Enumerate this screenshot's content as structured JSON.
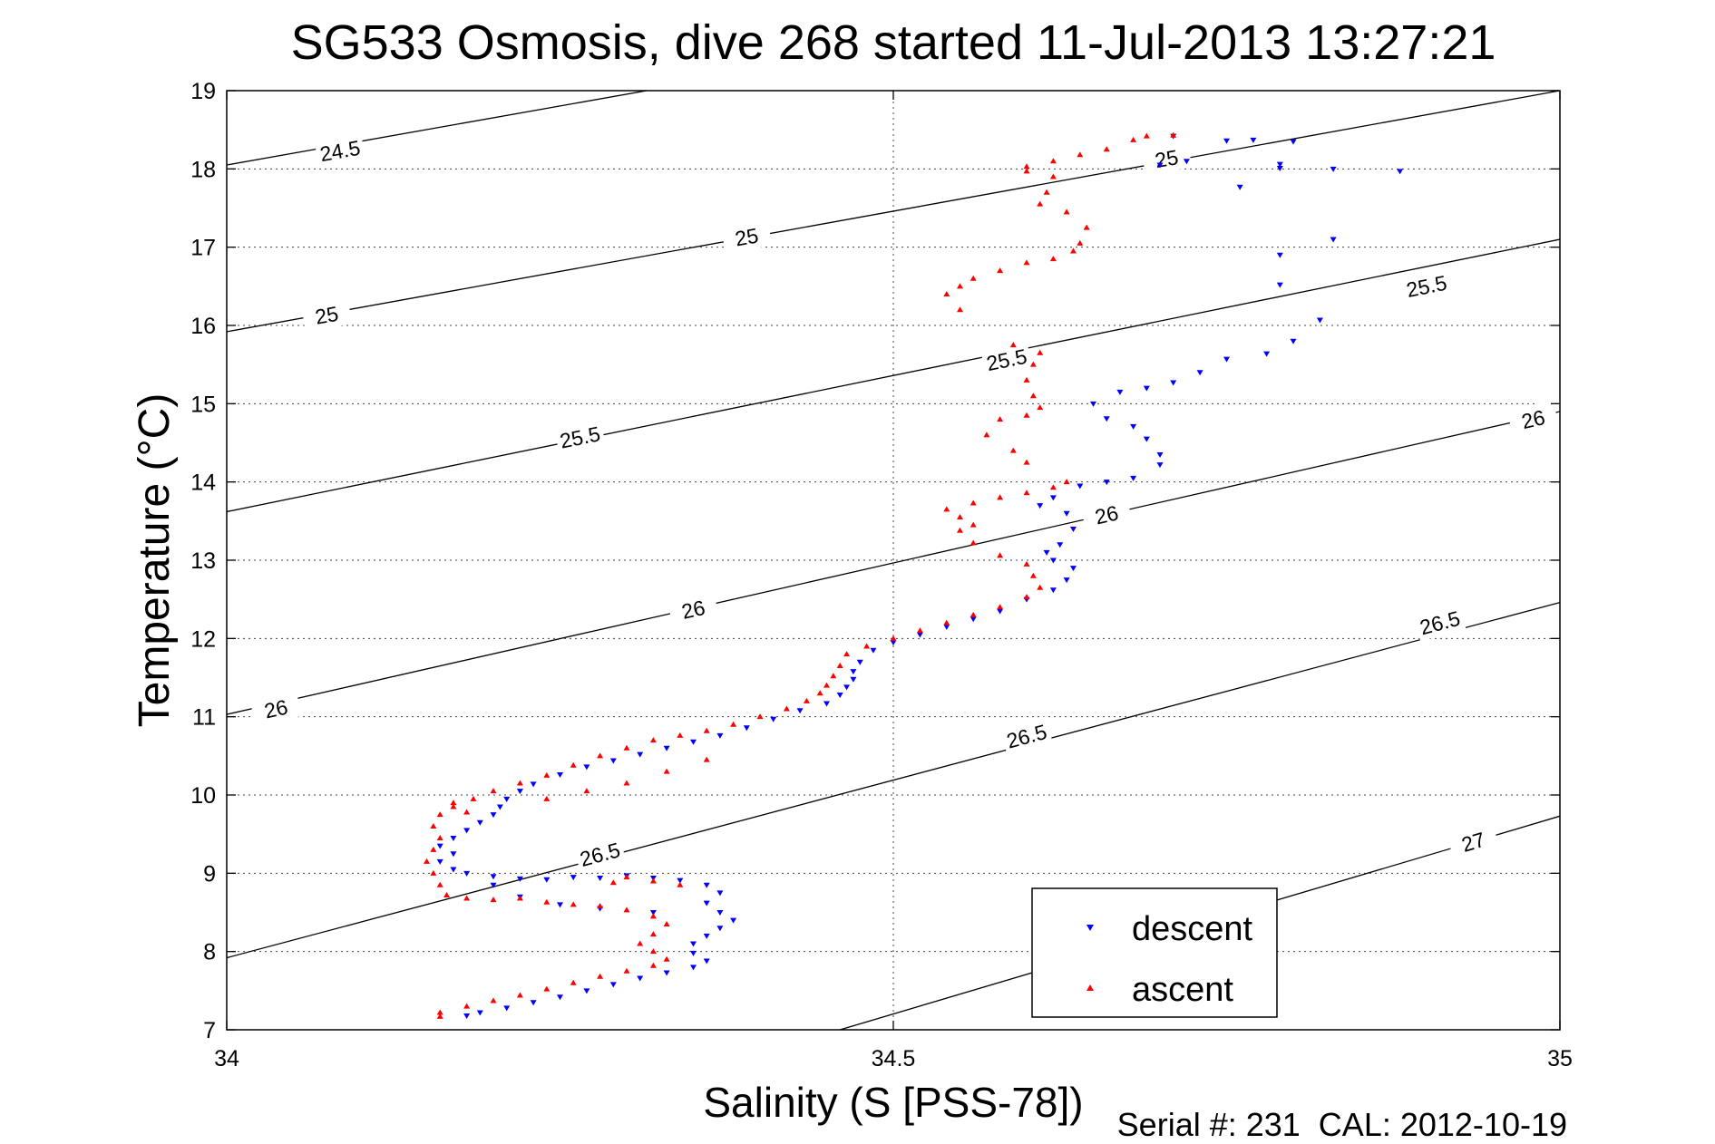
{
  "chart_data": {
    "type": "scatter",
    "title": "SG533 Osmosis, dive 268 started 11-Jul-2013 13:27:21",
    "xlabel": "Salinity (S [PSS-78])",
    "ylabel": "Temperature (°C)",
    "footer": "Serial #: 231  CAL: 2012-10-19",
    "xlim": [
      34,
      35
    ],
    "ylim": [
      7,
      19
    ],
    "x_ticks": [
      34,
      34.5,
      35
    ],
    "y_ticks": [
      7,
      8,
      9,
      10,
      11,
      12,
      13,
      14,
      15,
      16,
      17,
      18,
      19
    ],
    "grid": true,
    "legend": {
      "placement": "lower-right",
      "entries": [
        "descent",
        "ascent"
      ]
    },
    "colors": {
      "descent": "#0000ff",
      "ascent": "#ff0000",
      "contours": "#000000"
    },
    "contours": [
      {
        "label": "24.5",
        "points": [
          [
            34.0,
            18.05
          ],
          [
            34.315,
            19.0
          ]
        ],
        "label_at": [
          [
            34.085,
            18.23
          ]
        ]
      },
      {
        "label": "25",
        "points": [
          [
            34.0,
            15.92
          ],
          [
            35.0,
            19.0
          ]
        ],
        "label_at": [
          [
            34.075,
            16.13
          ],
          [
            34.39,
            17.13
          ],
          [
            34.705,
            18.13
          ]
        ]
      },
      {
        "label": "25.5",
        "points": [
          [
            34.0,
            13.62
          ],
          [
            35.0,
            17.1
          ]
        ],
        "label_at": [
          [
            34.265,
            14.57
          ],
          [
            34.585,
            15.56
          ],
          [
            34.9,
            16.5
          ]
        ]
      },
      {
        "label": "26",
        "points": [
          [
            34.0,
            11.03
          ],
          [
            35.0,
            14.9
          ]
        ],
        "label_at": [
          [
            34.037,
            11.1
          ],
          [
            34.35,
            12.37
          ],
          [
            34.66,
            13.58
          ],
          [
            34.98,
            14.8
          ]
        ]
      },
      {
        "label": "26.5",
        "points": [
          [
            34.0,
            7.92
          ],
          [
            35.0,
            12.46
          ]
        ],
        "label_at": [
          [
            34.28,
            9.24
          ],
          [
            34.6,
            10.75
          ],
          [
            34.91,
            12.2
          ]
        ]
      },
      {
        "label": "27",
        "points": [
          [
            34.46,
            7.0
          ],
          [
            35.0,
            9.73
          ]
        ],
        "label_at": [
          [
            34.935,
            9.4
          ]
        ]
      }
    ],
    "series": [
      {
        "name": "descent",
        "marker": "triangle-down",
        "points": [
          [
            34.88,
            17.97
          ],
          [
            34.83,
            18.0
          ],
          [
            34.79,
            18.06
          ],
          [
            34.8,
            18.35
          ],
          [
            34.77,
            18.37
          ],
          [
            34.75,
            18.36
          ],
          [
            34.72,
            18.1
          ],
          [
            34.7,
            18.05
          ],
          [
            34.71,
            18.42
          ],
          [
            34.79,
            18.01
          ],
          [
            34.76,
            17.77
          ],
          [
            34.83,
            17.1
          ],
          [
            34.79,
            16.9
          ],
          [
            34.79,
            16.52
          ],
          [
            34.82,
            16.07
          ],
          [
            34.8,
            15.8
          ],
          [
            34.78,
            15.64
          ],
          [
            34.75,
            15.57
          ],
          [
            34.73,
            15.4
          ],
          [
            34.71,
            15.27
          ],
          [
            34.69,
            15.2
          ],
          [
            34.67,
            15.15
          ],
          [
            34.65,
            15.0
          ],
          [
            34.66,
            14.81
          ],
          [
            34.68,
            14.71
          ],
          [
            34.69,
            14.55
          ],
          [
            34.7,
            14.35
          ],
          [
            34.7,
            14.22
          ],
          [
            34.68,
            14.05
          ],
          [
            34.66,
            14.0
          ],
          [
            34.64,
            13.95
          ],
          [
            34.62,
            13.8
          ],
          [
            34.61,
            13.7
          ],
          [
            34.63,
            13.6
          ],
          [
            34.635,
            13.4
          ],
          [
            34.625,
            13.2
          ],
          [
            34.615,
            13.1
          ],
          [
            34.62,
            13.0
          ],
          [
            34.635,
            12.9
          ],
          [
            34.63,
            12.75
          ],
          [
            34.62,
            12.62
          ],
          [
            34.6,
            12.5
          ],
          [
            34.58,
            12.35
          ],
          [
            34.56,
            12.25
          ],
          [
            34.54,
            12.15
          ],
          [
            34.52,
            12.05
          ],
          [
            34.5,
            11.95
          ],
          [
            34.485,
            11.85
          ],
          [
            34.475,
            11.7
          ],
          [
            34.47,
            11.58
          ],
          [
            34.47,
            11.48
          ],
          [
            34.465,
            11.38
          ],
          [
            34.46,
            11.28
          ],
          [
            34.45,
            11.17
          ],
          [
            34.43,
            11.08
          ],
          [
            34.41,
            10.97
          ],
          [
            34.39,
            10.86
          ],
          [
            34.37,
            10.76
          ],
          [
            34.35,
            10.68
          ],
          [
            34.33,
            10.6
          ],
          [
            34.31,
            10.52
          ],
          [
            34.29,
            10.44
          ],
          [
            34.27,
            10.36
          ],
          [
            34.25,
            10.26
          ],
          [
            34.23,
            10.14
          ],
          [
            34.22,
            10.05
          ],
          [
            34.21,
            9.95
          ],
          [
            34.205,
            9.85
          ],
          [
            34.2,
            9.75
          ],
          [
            34.19,
            9.65
          ],
          [
            34.18,
            9.55
          ],
          [
            34.17,
            9.45
          ],
          [
            34.16,
            9.35
          ],
          [
            34.17,
            9.25
          ],
          [
            34.16,
            9.15
          ],
          [
            34.17,
            9.05
          ],
          [
            34.18,
            9.0
          ],
          [
            34.2,
            8.96
          ],
          [
            34.22,
            8.93
          ],
          [
            34.24,
            8.92
          ],
          [
            34.26,
            8.95
          ],
          [
            34.28,
            8.94
          ],
          [
            34.3,
            8.97
          ],
          [
            34.32,
            8.94
          ],
          [
            34.34,
            8.91
          ],
          [
            34.36,
            8.85
          ],
          [
            34.37,
            8.75
          ],
          [
            34.36,
            8.62
          ],
          [
            34.37,
            8.5
          ],
          [
            34.38,
            8.4
          ],
          [
            34.37,
            8.3
          ],
          [
            34.36,
            8.2
          ],
          [
            34.35,
            8.1
          ],
          [
            34.35,
            7.98
          ],
          [
            34.36,
            7.88
          ],
          [
            34.35,
            7.8
          ],
          [
            34.33,
            7.73
          ],
          [
            34.31,
            7.66
          ],
          [
            34.29,
            7.58
          ],
          [
            34.27,
            7.5
          ],
          [
            34.25,
            7.42
          ],
          [
            34.23,
            7.35
          ],
          [
            34.21,
            7.28
          ],
          [
            34.19,
            7.22
          ],
          [
            34.18,
            7.18
          ],
          [
            34.22,
            8.7
          ],
          [
            34.25,
            8.6
          ],
          [
            34.28,
            8.55
          ],
          [
            34.32,
            8.5
          ],
          [
            34.2,
            8.85
          ]
        ]
      },
      {
        "name": "ascent",
        "marker": "triangle-up",
        "points": [
          [
            34.69,
            18.42
          ],
          [
            34.71,
            18.43
          ],
          [
            34.68,
            18.37
          ],
          [
            34.66,
            18.25
          ],
          [
            34.64,
            18.18
          ],
          [
            34.62,
            18.1
          ],
          [
            34.6,
            18.03
          ],
          [
            34.6,
            17.97
          ],
          [
            34.62,
            17.9
          ],
          [
            34.615,
            17.7
          ],
          [
            34.61,
            17.55
          ],
          [
            34.63,
            17.45
          ],
          [
            34.645,
            17.25
          ],
          [
            34.64,
            17.05
          ],
          [
            34.635,
            16.95
          ],
          [
            34.62,
            16.85
          ],
          [
            34.6,
            16.8
          ],
          [
            34.58,
            16.7
          ],
          [
            34.56,
            16.6
          ],
          [
            34.55,
            16.5
          ],
          [
            34.54,
            16.4
          ],
          [
            34.55,
            16.2
          ],
          [
            34.59,
            15.75
          ],
          [
            34.61,
            15.65
          ],
          [
            34.605,
            15.5
          ],
          [
            34.6,
            15.3
          ],
          [
            34.605,
            15.1
          ],
          [
            34.61,
            14.95
          ],
          [
            34.6,
            14.85
          ],
          [
            34.58,
            14.8
          ],
          [
            34.57,
            14.6
          ],
          [
            34.59,
            14.4
          ],
          [
            34.6,
            14.25
          ],
          [
            34.63,
            14.0
          ],
          [
            34.62,
            13.93
          ],
          [
            34.6,
            13.86
          ],
          [
            34.58,
            13.8
          ],
          [
            34.56,
            13.73
          ],
          [
            34.54,
            13.65
          ],
          [
            34.55,
            13.55
          ],
          [
            34.56,
            13.45
          ],
          [
            34.55,
            13.38
          ],
          [
            34.56,
            13.22
          ],
          [
            34.58,
            13.06
          ],
          [
            34.6,
            12.95
          ],
          [
            34.605,
            12.8
          ],
          [
            34.61,
            12.65
          ],
          [
            34.6,
            12.53
          ],
          [
            34.58,
            12.4
          ],
          [
            34.56,
            12.3
          ],
          [
            34.54,
            12.2
          ],
          [
            34.52,
            12.1
          ],
          [
            34.5,
            12.0
          ],
          [
            34.48,
            11.9
          ],
          [
            34.465,
            11.8
          ],
          [
            34.46,
            11.65
          ],
          [
            34.455,
            11.52
          ],
          [
            34.45,
            11.4
          ],
          [
            34.445,
            11.3
          ],
          [
            34.435,
            11.2
          ],
          [
            34.42,
            11.1
          ],
          [
            34.4,
            11.0
          ],
          [
            34.38,
            10.9
          ],
          [
            34.36,
            10.82
          ],
          [
            34.34,
            10.76
          ],
          [
            34.32,
            10.7
          ],
          [
            34.3,
            10.6
          ],
          [
            34.28,
            10.5
          ],
          [
            34.26,
            10.38
          ],
          [
            34.24,
            10.25
          ],
          [
            34.22,
            10.15
          ],
          [
            34.2,
            10.05
          ],
          [
            34.185,
            9.95
          ],
          [
            34.17,
            9.85
          ],
          [
            34.16,
            9.75
          ],
          [
            34.155,
            9.6
          ],
          [
            34.16,
            9.45
          ],
          [
            34.155,
            9.3
          ],
          [
            34.15,
            9.15
          ],
          [
            34.155,
            9.0
          ],
          [
            34.16,
            8.85
          ],
          [
            34.165,
            8.72
          ],
          [
            34.18,
            8.68
          ],
          [
            34.2,
            8.66
          ],
          [
            34.22,
            8.68
          ],
          [
            34.24,
            8.63
          ],
          [
            34.26,
            8.6
          ],
          [
            34.28,
            8.58
          ],
          [
            34.3,
            8.53
          ],
          [
            34.32,
            8.45
          ],
          [
            34.33,
            8.35
          ],
          [
            34.32,
            8.22
          ],
          [
            34.31,
            8.1
          ],
          [
            34.32,
            8.0
          ],
          [
            34.33,
            7.9
          ],
          [
            34.32,
            7.82
          ],
          [
            34.3,
            7.75
          ],
          [
            34.28,
            7.68
          ],
          [
            34.26,
            7.6
          ],
          [
            34.24,
            7.52
          ],
          [
            34.22,
            7.44
          ],
          [
            34.2,
            7.37
          ],
          [
            34.18,
            7.3
          ],
          [
            34.16,
            7.22
          ],
          [
            34.16,
            7.17
          ],
          [
            34.24,
            9.95
          ],
          [
            34.27,
            10.05
          ],
          [
            34.3,
            10.15
          ],
          [
            34.33,
            10.3
          ],
          [
            34.36,
            10.45
          ],
          [
            34.3,
            8.95
          ],
          [
            34.32,
            8.9
          ],
          [
            34.34,
            8.85
          ],
          [
            34.29,
            8.88
          ],
          [
            34.17,
            9.9
          ],
          [
            34.18,
            9.78
          ]
        ]
      }
    ]
  }
}
